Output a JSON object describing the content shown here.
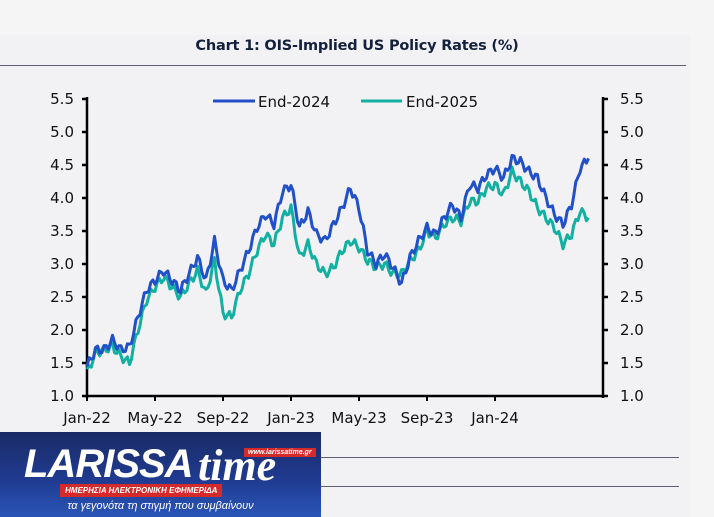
{
  "chart_data": {
    "type": "line",
    "title": "Chart 1: OIS-Implied US Policy Rates (%)",
    "xlabel": "",
    "ylabel": "",
    "ylim": [
      1.0,
      5.5
    ],
    "yticks": [
      "5.5",
      "5.0",
      "4.5",
      "4.0",
      "3.5",
      "3.0",
      "2.5",
      "2.0",
      "1.5",
      "1.0"
    ],
    "ytick_values": [
      5.5,
      5.0,
      4.5,
      4.0,
      3.5,
      3.0,
      2.5,
      2.0,
      1.5,
      1.0
    ],
    "xticks": [
      "Jan-22",
      "May-22",
      "Sep-22",
      "Jan-23",
      "May-23",
      "Sep-23",
      "Jan-24"
    ],
    "xtick_months": [
      0,
      4,
      8,
      12,
      16,
      20,
      24
    ],
    "xlim_months": [
      0,
      29.5
    ],
    "grid": false,
    "dual_y_axis": true,
    "legend_position": "top-center",
    "x_unit": "months since Jan-22 (half-month steps)",
    "x": [
      0,
      0.5,
      1,
      1.5,
      2,
      2.5,
      3,
      3.5,
      4,
      4.5,
      5,
      5.5,
      6,
      6.5,
      7,
      7.5,
      8,
      8.5,
      9,
      9.5,
      10,
      10.5,
      11,
      11.5,
      12,
      12.5,
      13,
      13.5,
      14,
      14.5,
      15,
      15.5,
      16,
      16.5,
      17,
      17.5,
      18,
      18.5,
      19,
      19.5,
      20,
      20.5,
      21,
      21.5,
      22,
      22.5,
      23,
      23.5,
      24,
      24.5,
      25,
      25.5,
      26,
      26.5,
      27,
      27.5,
      28,
      28.5,
      29,
      29.5
    ],
    "series": [
      {
        "name": "End-2024",
        "color": "#2150c8",
        "values": [
          1.45,
          1.7,
          1.7,
          1.85,
          1.7,
          1.75,
          2.2,
          2.6,
          2.75,
          2.9,
          2.75,
          2.6,
          2.85,
          3.1,
          2.75,
          3.35,
          2.75,
          2.6,
          2.9,
          3.2,
          3.55,
          3.75,
          3.6,
          4.1,
          4.2,
          3.55,
          3.8,
          3.45,
          3.35,
          3.6,
          3.85,
          4.15,
          3.85,
          3.2,
          3.0,
          3.15,
          2.95,
          2.7,
          3.1,
          3.35,
          3.55,
          3.45,
          3.7,
          3.9,
          3.7,
          4.2,
          4.15,
          4.35,
          4.45,
          4.3,
          4.6,
          4.55,
          4.4,
          4.3,
          4.0,
          3.75,
          3.6,
          3.9,
          4.45,
          4.6
        ]
      },
      {
        "name": "End-2025",
        "color": "#12b0a0",
        "values": [
          1.35,
          1.65,
          1.7,
          1.75,
          1.6,
          1.5,
          2.0,
          2.45,
          2.65,
          2.8,
          2.65,
          2.5,
          2.7,
          2.9,
          2.55,
          3.05,
          2.25,
          2.2,
          2.6,
          2.85,
          3.2,
          3.45,
          3.3,
          3.7,
          3.85,
          3.1,
          3.3,
          3.0,
          2.85,
          2.95,
          3.2,
          3.35,
          3.25,
          3.05,
          2.95,
          3.0,
          2.85,
          2.85,
          3.05,
          3.2,
          3.5,
          3.4,
          3.6,
          3.7,
          3.65,
          3.95,
          3.95,
          4.15,
          4.2,
          4.05,
          4.4,
          4.25,
          4.1,
          3.85,
          3.7,
          3.55,
          3.3,
          3.45,
          3.8,
          3.7
        ]
      }
    ]
  },
  "watermark": {
    "brand": "LARISSA",
    "brand_suffix": "time",
    "url": "www.larissatime.gr",
    "subtitle": "ΗΜΕΡΗΣΙΑ ΗΛΕΚΤΡΟΝΙΚΗ ΕΦΗΜΕΡΙΔΑ",
    "tagline": "τα γεγονότα τη στιγμή που συμβαίνουν"
  }
}
